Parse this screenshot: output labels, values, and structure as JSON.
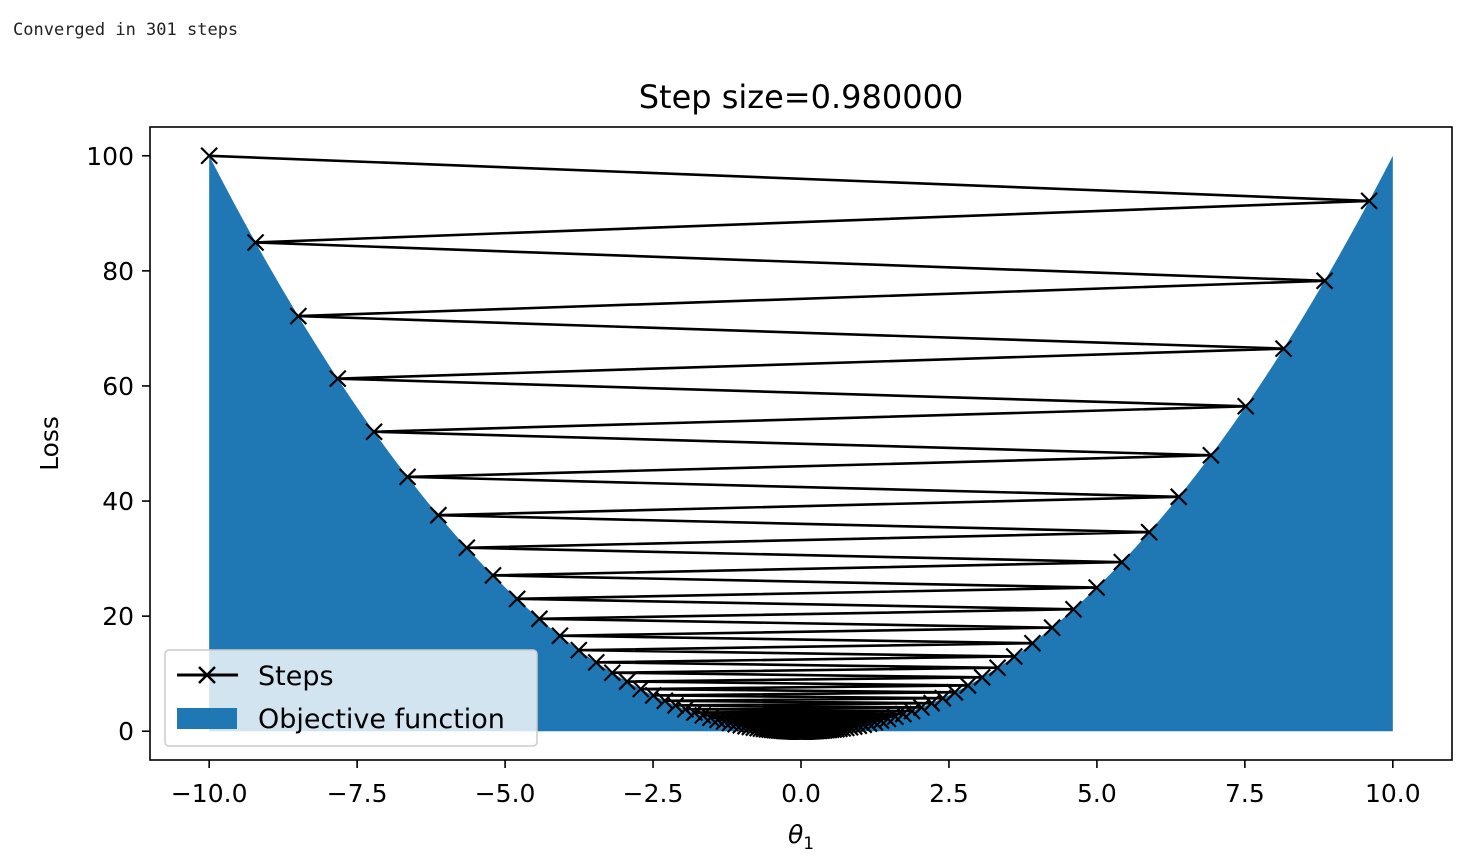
{
  "output": {
    "text": "Converged in 301 steps"
  },
  "chart_data": {
    "type": "line",
    "title": "Step size=0.980000",
    "xlabel": "θ1",
    "xlabel_main": "θ",
    "xlabel_sub": "1",
    "ylabel": "Loss",
    "xlim": [
      -11.0,
      11.0
    ],
    "ylim": [
      -5,
      105
    ],
    "x_ticks": [
      -10.0,
      -7.5,
      -5.0,
      -2.5,
      0.0,
      2.5,
      5.0,
      7.5,
      10.0
    ],
    "x_tick_labels": [
      "−10.0",
      "−7.5",
      "−5.0",
      "−2.5",
      "0.0",
      "2.5",
      "5.0",
      "7.5",
      "10.0"
    ],
    "y_ticks": [
      0,
      20,
      40,
      60,
      80,
      100
    ],
    "y_tick_labels": [
      "0",
      "20",
      "40",
      "60",
      "80",
      "100"
    ],
    "grid": false,
    "legend_position": "lower-left",
    "series": [
      {
        "name": "Steps",
        "kind": "line",
        "marker": "x",
        "color": "#000000",
        "function": "x^2",
        "x0": -10,
        "step_factor": -0.96,
        "num_points": 302
      },
      {
        "name": "Objective function",
        "kind": "area",
        "color": "#1f77b4",
        "function": "x^2",
        "x_range": [
          -10,
          10
        ]
      }
    ]
  }
}
